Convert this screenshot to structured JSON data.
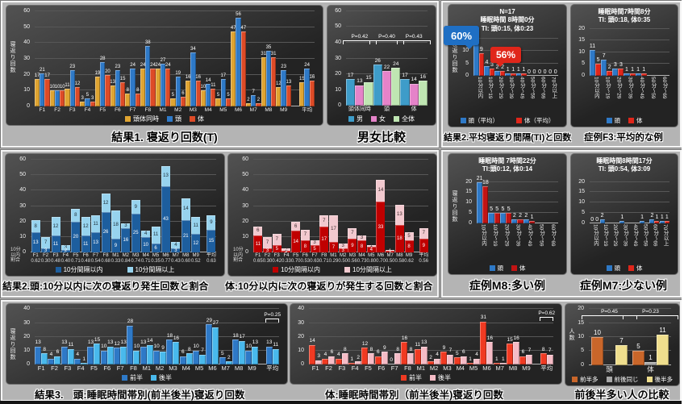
{
  "theme": {
    "slide_bg": "#b9b9b9",
    "panel_dark": "#2b2b2b",
    "gridline": "#575757",
    "caption_color": "#000000"
  },
  "chart_data": [
    {
      "id": "result1-turn-count-chart",
      "type": "bar",
      "caption": "結果1. 寝返り回数(T)",
      "ylabel": "寝返り回数",
      "ylim": 62,
      "yticks": [
        0,
        10,
        20,
        30,
        40,
        50,
        60
      ],
      "categories": [
        "F1",
        "F2",
        "F3",
        "F4",
        "F5",
        "F6",
        "F7",
        "F8",
        "M1",
        "M2",
        "M3",
        "M4",
        "M5",
        "M6",
        "M7",
        "M8",
        "M9",
        "平均"
      ],
      "gap_before_last": true,
      "series": [
        {
          "name": "頭体同時",
          "color": "#DFA431",
          "values": [
            17,
            10,
            11,
            3,
            19,
            13,
            8,
            24,
            24,
            5,
            16,
            10,
            5,
            47,
            2,
            31,
            12,
            15
          ]
        },
        {
          "name": "頭",
          "color": "#2E79C7",
          "values": [
            21,
            10,
            23,
            5,
            28,
            23,
            24,
            38,
            27,
            19,
            34,
            14,
            17,
            56,
            7,
            35,
            23,
            24
          ]
        },
        {
          "name": "体",
          "color": "#DD4B27",
          "values": [
            17,
            10,
            12,
            3,
            20,
            15,
            8,
            24,
            24,
            6,
            16,
            11,
            5,
            47,
            2,
            31,
            13,
            16
          ]
        }
      ],
      "ml": 30,
      "vfs": 6,
      "xfs": 6.5,
      "lgfs": 8,
      "bar_max": 7
    },
    {
      "id": "gender-comparison-chart",
      "type": "bar",
      "caption": "男女比較",
      "ylim": 62,
      "yticks": [
        0,
        10,
        20,
        30,
        40,
        50,
        60
      ],
      "categories": [
        "頭体同時",
        "頭",
        "体"
      ],
      "series": [
        {
          "name": "男",
          "color": "#3E9CC9",
          "values": [
            17,
            26,
            17
          ]
        },
        {
          "name": "女",
          "color": "#E583C9",
          "values": [
            13,
            22,
            14
          ]
        },
        {
          "name": "全体",
          "color": "#BFE6B2",
          "values": [
            15,
            24,
            16
          ]
        }
      ],
      "ann": [
        {
          "i": 0,
          "text": "P=0.42",
          "b": 63
        },
        {
          "i": 1,
          "text": "P=0.40",
          "b": 63
        },
        {
          "i": 2,
          "text": "P=0.43",
          "b": 63
        }
      ],
      "ml": 18,
      "vfs": 6.5,
      "xfs": 7,
      "lgfs": 8,
      "bar_max": 13
    },
    {
      "id": "result2-average-interval-chart",
      "type": "bar",
      "caption": "結果2.平均寝返り間隔(TI)と回数",
      "title_lines": [
        "N=17",
        "睡眠時間 8時間0分",
        "TI: 頭0:15, 体0:23"
      ],
      "callouts": [
        {
          "text": "60%",
          "bg": "#1F6FC4",
          "l": -6,
          "t": 26,
          "w": 44,
          "h": 24,
          "fs": 13,
          "tail": "right"
        },
        {
          "text": "56%",
          "bg": "#E0261A",
          "l": 52,
          "t": 52,
          "w": 38,
          "h": 20,
          "fs": 12,
          "tail": "left"
        }
      ],
      "ylabel": "寝返り回数",
      "ylim": 16.5,
      "yticks": [
        0,
        5,
        10,
        15
      ],
      "categories": [
        "10分以内",
        "10分～19",
        "20分～29",
        "30分～39",
        "40分～49",
        "50分～59",
        "60分～69",
        "70分以上"
      ],
      "xvert": true,
      "label_zero": true,
      "series": [
        {
          "name": "頭（平均）",
          "color": "#2E79C7",
          "values": [
            14,
            4,
            2,
            1,
            1,
            0,
            0,
            0
          ]
        },
        {
          "name": "体（平均）",
          "color": "#E0261A",
          "values": [
            9,
            3,
            2,
            1,
            1,
            0,
            0,
            0
          ]
        }
      ],
      "ml": 26,
      "vfs": 7,
      "xfs": 6.5,
      "lgfs": 7.5,
      "lggap": 22,
      "bar_max": 7
    },
    {
      "id": "case-f3-chart",
      "type": "bar",
      "caption": "症例F3:平均的な例",
      "title_lines": [
        "睡眠時間7時間8分",
        "TI: 頭0:18, 体0:35"
      ],
      "ylim": 21,
      "yticks": [
        0,
        5,
        10,
        15,
        20
      ],
      "categories": [
        "10分以内",
        "10分～19",
        "20分～29",
        "30分～39",
        "40分～49",
        "50分～59",
        "60分～69"
      ],
      "xvert": true,
      "series": [
        {
          "name": "頭",
          "color": "#2E79C7",
          "values": [
            11,
            7,
            3,
            1,
            1,
            0,
            0
          ]
        },
        {
          "name": "体",
          "color": "#E0261A",
          "values": [
            5,
            2,
            3,
            1,
            1,
            0,
            0
          ]
        }
      ],
      "ml": 18,
      "vfs": 7,
      "xfs": 6.5,
      "lgfs": 7.5,
      "bar_max": 8
    },
    {
      "id": "case-m8-chart",
      "type": "bar",
      "caption": "症例M8:多い例",
      "title_lines": [
        "睡眠時間 7時間22分",
        "TI:頭0:12, 体0:14"
      ],
      "ylabel": "寝返り回数",
      "ylim": 23,
      "yticks": [
        0,
        5,
        10,
        15,
        20
      ],
      "categories": [
        "10分以内",
        "10分～19",
        "20分～29",
        "30分～39",
        "40分～49",
        "50分～59",
        "60分～69"
      ],
      "xvert": true,
      "series": [
        {
          "name": "頭",
          "color": "#2E79C7",
          "values": [
            21,
            5,
            5,
            2,
            2,
            0,
            0
          ]
        },
        {
          "name": "体",
          "color": "#C11414",
          "values": [
            18,
            5,
            5,
            2,
            1,
            0,
            0
          ]
        }
      ],
      "ml": 30,
      "vfs": 7,
      "xfs": 6.5,
      "lgfs": 7.5,
      "bar_max": 8
    },
    {
      "id": "case-m7-chart",
      "type": "bar",
      "caption": "症例M7:少ない例",
      "title_lines": [
        "睡眠時間8時間17分",
        "TI: 頭0:54, 体3:09"
      ],
      "ylim": 23,
      "yticks": [
        0,
        5,
        10,
        15,
        20
      ],
      "categories": [
        "10分以内",
        "10分～19",
        "20分～29",
        "30分～39",
        "40分～49",
        "50分～59",
        "60分～69",
        "70分以上"
      ],
      "xvert": true,
      "zero_idx": [
        0
      ],
      "series": [
        {
          "name": "頭",
          "color": "#2E79C7",
          "values": [
            0,
            2,
            0,
            1,
            0,
            1,
            2,
            1
          ]
        },
        {
          "name": "体",
          "color": "#E0261A",
          "values": [
            0,
            0,
            0,
            0,
            0,
            0,
            1,
            1
          ]
        }
      ],
      "ml": 18,
      "vfs": 7,
      "xfs": 6.5,
      "lgfs": 7.5,
      "bar_max": 6
    },
    {
      "id": "result2-head-within10min-chart",
      "type": "stacked",
      "caption": "結果2.頭:10分以内に次の寝返り発生回数と割合",
      "ylim": 62,
      "yticks": [
        0,
        10,
        20,
        30,
        40,
        50,
        60
      ],
      "categories": [
        "F1",
        "F2",
        "F3",
        "F4",
        "F5",
        "F6",
        "F7",
        "F8",
        "M1",
        "M2",
        "M3",
        "M4",
        "M5",
        "M6",
        "M7",
        "M8",
        "M9",
        "平均"
      ],
      "gap_before_last": true,
      "series": [
        {
          "name": "10分間隔以内",
          "color": "#1D5E9E",
          "values": [
            13,
            3,
            11,
            2,
            20,
            11,
            13,
            26,
            9,
            16,
            25,
            10,
            6,
            43,
            3,
            21,
            12,
            15
          ]
        },
        {
          "name": "10分間隔以上",
          "color": "#97D3EE",
          "lc": "#20303a",
          "values": [
            8,
            7,
            12,
            3,
            8,
            12,
            11,
            12,
            18,
            3,
            9,
            4,
            11,
            13,
            4,
            14,
            11,
            9
          ]
        }
      ],
      "ratios": [
        "0.62",
        "0.30",
        "0.48",
        "0.40",
        "0.71",
        "0.48",
        "0.54",
        "0.68",
        "0.33",
        "0.84",
        "0.74",
        "0.71",
        "0.35",
        "0.77",
        "0.43",
        "0.60",
        "0.52",
        "0.63"
      ],
      "ratio_label": "10分\n以内\n割合",
      "ml": 26,
      "vfs": 6,
      "xfs": 6,
      "lgfs": 8,
      "lggap": 30,
      "bar_max": 11
    },
    {
      "id": "result2-body-within10min-chart",
      "type": "stacked",
      "caption": "体:10分以内に次の寝返りが発生する回数と割合",
      "ylim": 62,
      "yticks": [
        0,
        10,
        20,
        30,
        40,
        50,
        60
      ],
      "categories": [
        "F1",
        "F2",
        "F3",
        "F4",
        "F5",
        "F6",
        "F7",
        "F8",
        "M1",
        "M2",
        "M3",
        "M4",
        "M5",
        "M6",
        "M7",
        "M8",
        "M9",
        "平均"
      ],
      "gap_before_last": true,
      "series": [
        {
          "name": "10分間隔以内",
          "color": "#C00000",
          "values": [
            11,
            3,
            5,
            1,
            14,
            8,
            5,
            17,
            7,
            3,
            9,
            8,
            4,
            33,
            1,
            18,
            8,
            9
          ]
        },
        {
          "name": "10分間隔以上",
          "color": "#F2C9CF",
          "lc": "#3a2a2c",
          "values": [
            6,
            7,
            7,
            2,
            6,
            7,
            3,
            7,
            17,
            3,
            7,
            3,
            1,
            14,
            1,
            13,
            5,
            7
          ]
        }
      ],
      "ratios": [
        "0.65",
        "0.30",
        "0.42",
        "0.33",
        "0.70",
        "0.53",
        "0.63",
        "0.71",
        "0.29",
        "0.50",
        "0.56",
        "0.73",
        "0.80",
        "0.70",
        "0.50",
        "0.58",
        "0.62",
        "0.56"
      ],
      "ratio_label": "10分\n以内\n割合",
      "ml": 26,
      "vfs": 6,
      "xfs": 6,
      "lgfs": 8,
      "lggap": 30,
      "bar_max": 11
    },
    {
      "id": "result3-head-halves-chart",
      "type": "bar",
      "caption": "結果3.　頭:睡眠時間帯別(前半後半)寝返り回数",
      "ylabel": "寝返り回数",
      "ylim": 42,
      "yticks": [
        0,
        10,
        20,
        30,
        40
      ],
      "categories": [
        "F1",
        "F2",
        "F3",
        "F4",
        "F5",
        "F6",
        "F7",
        "F8",
        "M1",
        "M2",
        "M3",
        "M4",
        "M5",
        "M6",
        "M7",
        "M8",
        "M9",
        "平均"
      ],
      "gap_before_last": true,
      "series": [
        {
          "name": "前半",
          "color": "#2E79C7",
          "values": [
            13,
            4,
            13,
            4,
            13,
            10,
            12,
            28,
            13,
            10,
            18,
            6,
            10,
            29,
            5,
            18,
            10,
            13
          ]
        },
        {
          "name": "後半",
          "color": "#49B9EC",
          "values": [
            8,
            6,
            11,
            1,
            15,
            13,
            13,
            10,
            14,
            9,
            16,
            8,
            7,
            27,
            2,
            17,
            13,
            11
          ]
        }
      ],
      "ann": [
        {
          "i": 17,
          "text": "P=0.25",
          "b": 72
        }
      ],
      "ml": 30,
      "vfs": 6.5,
      "xfs": 7.5,
      "lgfs": 8,
      "bar_max": 8
    },
    {
      "id": "result3-body-halves-chart",
      "type": "bar",
      "caption": "体:睡眠時間帯別（前半後半)寝返り回数",
      "ylim": 42,
      "yticks": [
        0,
        10,
        20,
        30,
        40
      ],
      "categories": [
        "F1",
        "F2",
        "F3",
        "F4",
        "F5",
        "F6",
        "F7",
        "F8",
        "M1",
        "M2",
        "M3",
        "M4",
        "M5",
        "M6",
        "M7",
        "M8",
        "M9",
        "平均"
      ],
      "gap_before_last": true,
      "label_zero": true,
      "series": [
        {
          "name": "前半",
          "color": "#F03A22",
          "values": [
            14,
            4,
            4,
            1,
            12,
            6,
            0,
            16,
            11,
            2,
            9,
            5,
            1,
            31,
            1,
            15,
            6,
            8
          ]
        },
        {
          "name": "後半",
          "color": "#F5BCC6",
          "values": [
            3,
            6,
            8,
            2,
            8,
            9,
            8,
            8,
            13,
            4,
            7,
            6,
            4,
            16,
            1,
            16,
            7,
            7
          ]
        }
      ],
      "ann": [
        {
          "i": 17,
          "text": "P=0.62",
          "b": 75
        }
      ],
      "ml": 18,
      "vfs": 6.5,
      "xfs": 7.5,
      "lgfs": 8,
      "bar_max": 8
    },
    {
      "id": "halves-comparison-chart",
      "type": "bar",
      "caption": "前後半多い人の比較",
      "ylabel": "人数",
      "ylim": 21,
      "yticks": [
        0,
        5,
        10,
        15,
        20
      ],
      "categories": [
        "頭",
        "体"
      ],
      "series": [
        {
          "name": "前半多",
          "color": "#C9662A",
          "values": [
            10,
            5
          ]
        },
        {
          "name": "前後同じ",
          "color": "#A9A9A9",
          "values": [
            0,
            1
          ]
        },
        {
          "name": "後半多",
          "color": "#EFDE8D",
          "values": [
            7,
            11
          ]
        }
      ],
      "ann": [
        {
          "i": 0,
          "text": "P=0.45",
          "b": 78
        },
        {
          "i": 1,
          "text": "P=0.23",
          "b": 78
        }
      ],
      "ml": 24,
      "vfs": 8,
      "xfs": 8.5,
      "lgfs": 7.5,
      "bar_max": 15
    }
  ]
}
